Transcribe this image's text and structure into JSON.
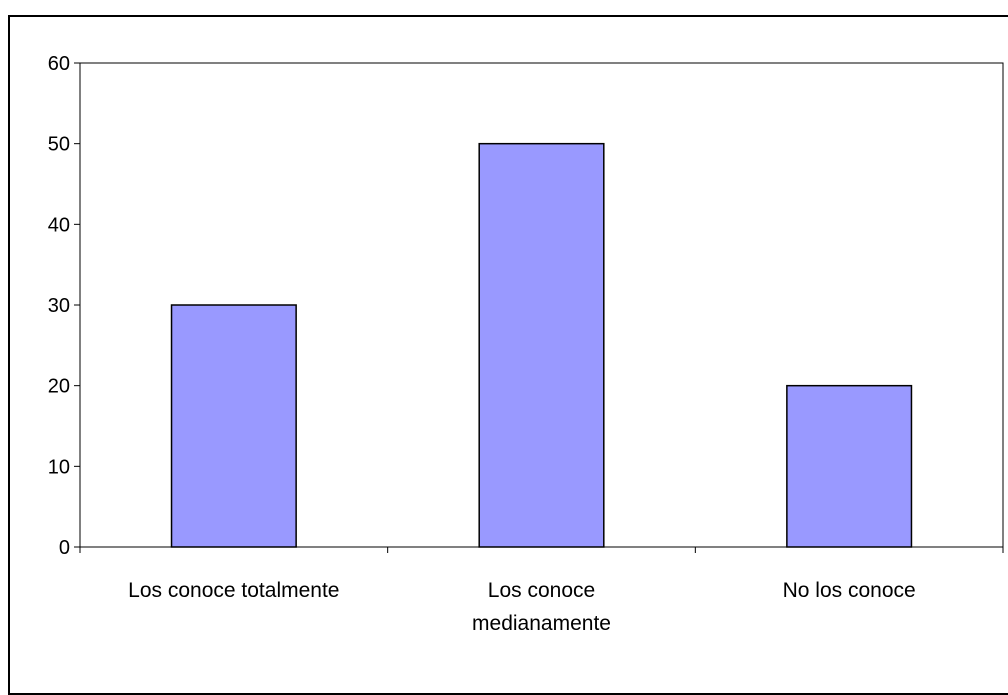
{
  "chart_data": {
    "type": "bar",
    "categories": [
      [
        "Los conoce totalmente"
      ],
      [
        "Los conoce",
        "medianamente"
      ],
      [
        "No los conoce"
      ]
    ],
    "values": [
      30,
      50,
      20
    ],
    "ylim": [
      0,
      60
    ],
    "yticks": [
      0,
      10,
      20,
      30,
      40,
      50,
      60
    ],
    "grid": false,
    "legend": "none",
    "bar_color": "#9999ff",
    "bar_stroke": "#000000"
  }
}
